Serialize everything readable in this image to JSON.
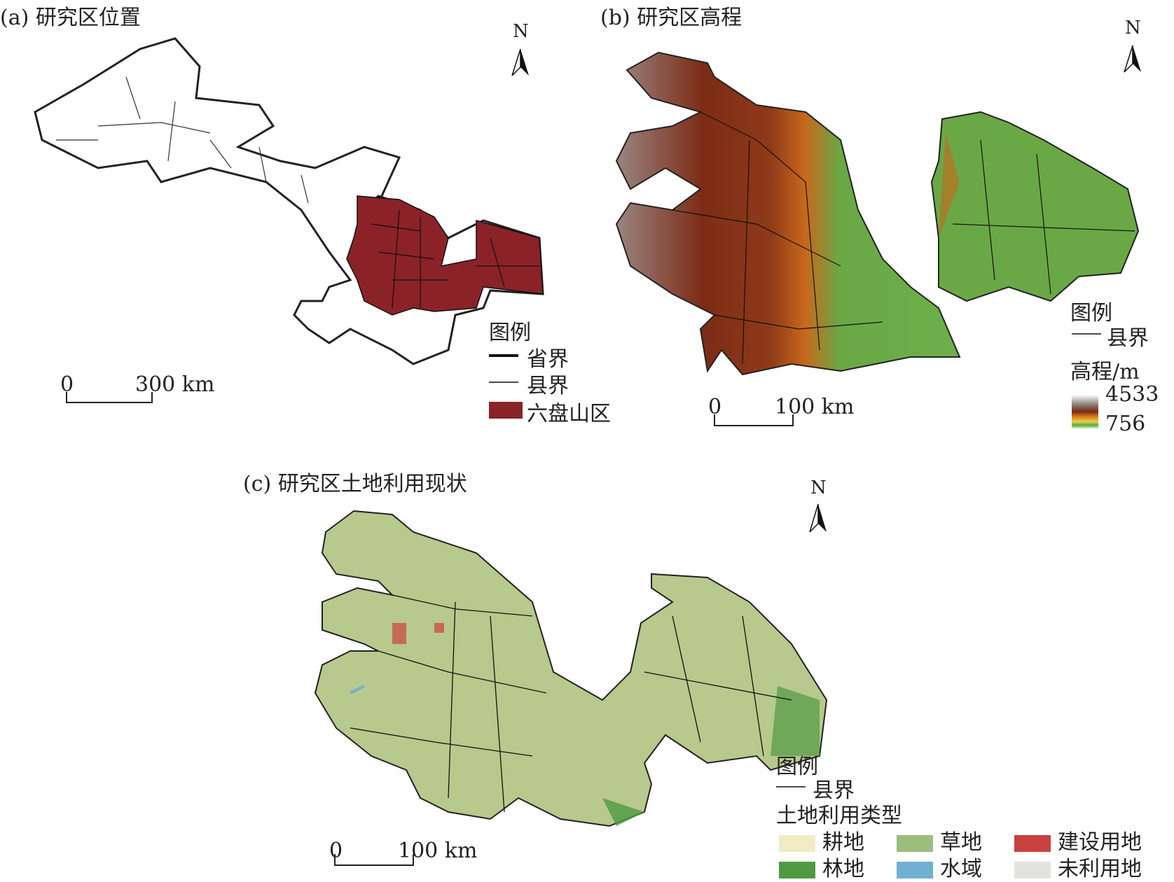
{
  "panels": {
    "a": {
      "title": "(a) 研究区位置",
      "legend": {
        "title": "图例",
        "items": [
          {
            "label": "省界",
            "symbol": "thick-line"
          },
          {
            "label": "县界",
            "symbol": "thin-line"
          },
          {
            "label": "六盘山区",
            "symbol": "fill",
            "color": "#8b2228"
          }
        ]
      },
      "scale": {
        "start": "0",
        "end": "300 km"
      },
      "north": "N"
    },
    "b": {
      "title": "(b) 研究区高程",
      "legend": {
        "title": "图例",
        "boundary": "县界",
        "ramp_title": "高程/m",
        "max": "4533",
        "min": "756"
      },
      "scale": {
        "start": "0",
        "end": "100 km"
      },
      "north": "N"
    },
    "c": {
      "title": "(c) 研究区土地利用现状",
      "legend": {
        "title": "图例",
        "boundary": "县界",
        "classes_title": "土地利用类型",
        "classes": [
          {
            "label": "耕地",
            "color": "#f1ecc4"
          },
          {
            "label": "草地",
            "color": "#9dbd7d"
          },
          {
            "label": "建设用地",
            "color": "#c9413f"
          },
          {
            "label": "林地",
            "color": "#4f9a41"
          },
          {
            "label": "水域",
            "color": "#6fb0d4"
          },
          {
            "label": "未利用地",
            "color": "#e2e3e0"
          }
        ]
      },
      "scale": {
        "start": "0",
        "end": "100 km"
      },
      "north": "N"
    }
  }
}
